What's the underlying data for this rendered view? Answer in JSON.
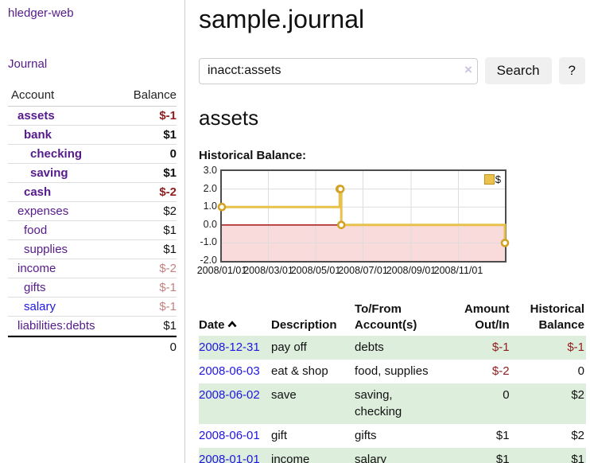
{
  "brand": "hledger-web",
  "nav": {
    "journal": "Journal"
  },
  "sidebar": {
    "account_header": "Account",
    "balance_header": "Balance",
    "accounts": [
      {
        "name": "assets",
        "depth": 1,
        "bold": true,
        "balance": "$-1",
        "balance_style": "neg-strong",
        "link_state": "visited"
      },
      {
        "name": "bank",
        "depth": 2,
        "bold": true,
        "balance": "$1",
        "balance_style": "pos",
        "link_state": "visited"
      },
      {
        "name": "checking",
        "depth": 3,
        "bold": true,
        "balance": "0",
        "balance_style": "pos",
        "link_state": "visited"
      },
      {
        "name": "saving",
        "depth": 3,
        "bold": true,
        "balance": "$1",
        "balance_style": "pos",
        "link_state": "visited"
      },
      {
        "name": "cash",
        "depth": 2,
        "bold": true,
        "balance": "$-2",
        "balance_style": "neg-strong",
        "link_state": "visited"
      },
      {
        "name": "expenses",
        "depth": 1,
        "bold": false,
        "balance": "$2",
        "balance_style": "pos",
        "link_state": "visited"
      },
      {
        "name": "food",
        "depth": 2,
        "bold": false,
        "balance": "$1",
        "balance_style": "pos",
        "link_state": "visited"
      },
      {
        "name": "supplies",
        "depth": 2,
        "bold": false,
        "balance": "$1",
        "balance_style": "pos",
        "link_state": "visited"
      },
      {
        "name": "income",
        "depth": 1,
        "bold": false,
        "balance": "$-2",
        "balance_style": "neg-soft",
        "link_state": "visited"
      },
      {
        "name": "gifts",
        "depth": 2,
        "bold": false,
        "balance": "$-1",
        "balance_style": "neg-soft",
        "link_state": "visited"
      },
      {
        "name": "salary",
        "depth": 2,
        "bold": false,
        "balance": "$-1",
        "balance_style": "neg-soft",
        "link_state": "new"
      },
      {
        "name": "liabilities:debts",
        "depth": 1,
        "bold": false,
        "balance": "$1",
        "balance_style": "pos",
        "link_state": "visited"
      }
    ],
    "total": "0"
  },
  "header": {
    "title": "sample.journal"
  },
  "search": {
    "value": "inacct:assets",
    "clear": "×",
    "submit": "Search",
    "help": "?"
  },
  "account_page": {
    "title": "assets",
    "chart_label": "Historical Balance:"
  },
  "chart_data": {
    "type": "line",
    "step": true,
    "title": "Historical Balance:",
    "series": [
      {
        "name": "$",
        "color": "#e7c14c",
        "points_dates": [
          "2008-01-01",
          "2008-06-01",
          "2008-06-02",
          "2008-06-03",
          "2008-12-31"
        ],
        "points_x_days": [
          0,
          152,
          153,
          154,
          365
        ],
        "values": [
          1,
          2,
          2,
          0,
          -1
        ]
      }
    ],
    "ylim": [
      -2,
      3
    ],
    "ytick_values": [
      3,
      2,
      1,
      0,
      -1,
      -2
    ],
    "yticks": [
      "3.0",
      "2.0",
      "1.0",
      "0.0",
      "-1.0",
      "-2.0"
    ],
    "xticks": [
      {
        "label": "2008/01/01",
        "day": 0
      },
      {
        "label": "2008/03/01",
        "day": 60
      },
      {
        "label": "2008/05/01",
        "day": 121
      },
      {
        "label": "2008/07/01",
        "day": 182
      },
      {
        "label": "2008/09/01",
        "day": 244
      },
      {
        "label": "2008/11/01",
        "day": 305
      }
    ],
    "x_total_days": 365,
    "legend": {
      "label": "$"
    },
    "grid": true,
    "negative_region_color": "#fadbdb",
    "zero_line_color": "#990000"
  },
  "register": {
    "headers": {
      "date": "Date",
      "description": "Description",
      "tofrom": "To/From Account(s)",
      "amount": "Amount Out/In",
      "balance": "Historical Balance"
    },
    "rows": [
      {
        "date": "2008-12-31",
        "description": "pay off",
        "accounts": "debts",
        "amount": "$-1",
        "balance": "$-1",
        "amount_neg": true,
        "balance_neg": true
      },
      {
        "date": "2008-06-03",
        "description": "eat & shop",
        "accounts": "food, supplies",
        "amount": "$-2",
        "balance": "0",
        "amount_neg": true,
        "balance_neg": false
      },
      {
        "date": "2008-06-02",
        "description": "save",
        "accounts": "saving, checking",
        "amount": "0",
        "balance": "$2",
        "amount_neg": false,
        "balance_neg": false
      },
      {
        "date": "2008-06-01",
        "description": "gift",
        "accounts": "gifts",
        "amount": "$1",
        "balance": "$2",
        "amount_neg": false,
        "balance_neg": false
      },
      {
        "date": "2008-01-01",
        "description": "income",
        "accounts": "salary",
        "amount": "$1",
        "balance": "$1",
        "amount_neg": false,
        "balance_neg": false
      }
    ]
  },
  "colors": {
    "link_purple": "#551a8b",
    "link_blue": "#2016e0",
    "neg_strong": "#8f1d1d",
    "neg_soft": "#c4817f",
    "stripe_green": "#ddeedd",
    "chart_line": "#e7c14c",
    "chart_marker": "#d2a225",
    "chart_negative_bg": "#fadbdb",
    "zero_line": "#990000"
  }
}
